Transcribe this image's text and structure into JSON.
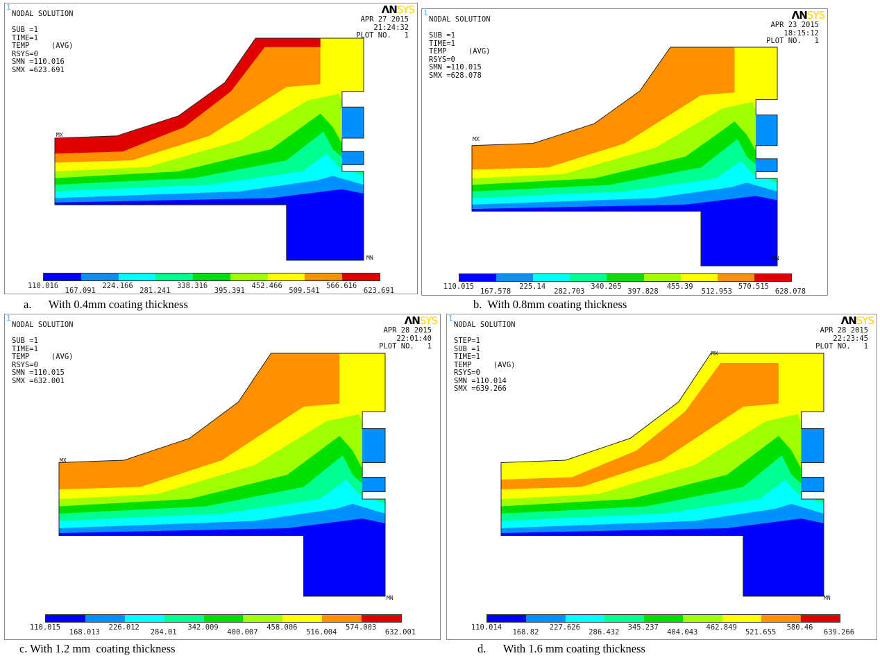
{
  "logo": {
    "part1": "ΛN",
    "part2": "SYS"
  },
  "panels": [
    {
      "frame": "1",
      "info": "NODAL SOLUTION\n\nSUB =1\nTIME=1\nTEMP     (AVG)\nRSYS=0\nSMN =110.016\nSMX =623.691",
      "date": "APR 27 2015\n21:24:32\nPLOT NO.   1",
      "mx": "MX",
      "mn": "MN",
      "legend": [
        "110.016",
        "167.091",
        "224.166",
        "281.241",
        "338.316",
        "395.391",
        "452.466",
        "509.541",
        "566.616",
        "623.691"
      ],
      "caption": "a.      With 0.4mm coating thickness"
    },
    {
      "frame": "1",
      "info": "NODAL SOLUTION\n\nSUB =1\nTIME=1\nTEMP     (AVG)\nRSYS=0\nSMN =110.015\nSMX =628.078",
      "date": "APR 23 2015\n18:15:12\nPLOT NO.   1",
      "mx": "MX",
      "mn": "MN",
      "legend": [
        "110.015",
        "167.578",
        "225.14",
        "282.703",
        "340.265",
        "397.828",
        "455.39",
        "512.953",
        "570.515",
        "628.078"
      ],
      "caption": "b.  With 0.8mm coating thickness"
    },
    {
      "frame": "1",
      "info": "NODAL SOLUTION\n\nSUB =1\nTIME=1\nTEMP     (AVG)\nRSYS=0\nSMN =110.015\nSMX =632.001",
      "date": "APR 28 2015\n22:01:40\nPLOT NO.   1",
      "mx": "MX",
      "mn": "MN",
      "legend": [
        "110.015",
        "168.013",
        "226.012",
        "284.01",
        "342.009",
        "400.007",
        "458.006",
        "516.004",
        "574.003",
        "632.001"
      ],
      "caption": "c. With 1.2 mm  coating thickness"
    },
    {
      "frame": "1",
      "info": "NODAL SOLUTION\n\nSTEP=1\nSUB =1\nTIME=1\nTEMP     (AVG)\nRSYS=0\nSMN =110.014\nSMX =639.266",
      "date": "APR 28 2015\n22:23:45\nPLOT NO.   1",
      "mx": "MX",
      "mn": "MN",
      "legend": [
        "110.014",
        "168.82",
        "227.626",
        "286.432",
        "345.237",
        "404.043",
        "462.849",
        "521.655",
        "580.46",
        "639.266"
      ],
      "caption": "d.      With 1.6 mm coating thickness"
    }
  ],
  "colors": [
    "#0000ff",
    "#0090ff",
    "#00ffff",
    "#00ff90",
    "#00e000",
    "#a0ff00",
    "#ffff00",
    "#ff9000",
    "#e00000"
  ]
}
